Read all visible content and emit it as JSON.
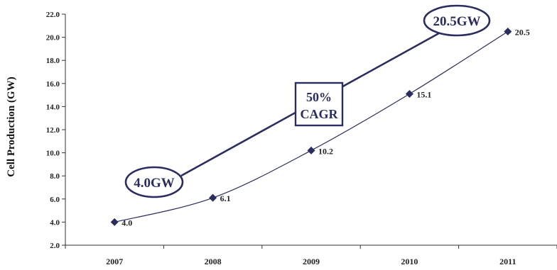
{
  "colors": {
    "series": "#2b2d5e",
    "axis": "#333333",
    "callout": "#2b2d5e"
  },
  "chart_data": {
    "type": "line",
    "title": "",
    "xlabel": "",
    "ylabel": "Cell Production (GW)",
    "categories": [
      "2007",
      "2008",
      "2009",
      "2010",
      "2011"
    ],
    "ylim": [
      2.0,
      22.0
    ],
    "yticks": [
      "2.0",
      "4.0",
      "6.0",
      "8.0",
      "10.0",
      "12.0",
      "14.0",
      "16.0",
      "18.0",
      "20.0",
      "22.0"
    ],
    "grid": false,
    "marker": "diamond",
    "series": [
      {
        "values": [
          4.0,
          6.1,
          10.2,
          15.1,
          20.5
        ],
        "labels": [
          "4.0",
          "6.1",
          "10.2",
          "15.1",
          "20.5"
        ]
      }
    ],
    "annotations": {
      "start": "4.0GW",
      "end": "20.5GW",
      "growth_line1": "50%",
      "growth_line2": "CAGR"
    }
  }
}
